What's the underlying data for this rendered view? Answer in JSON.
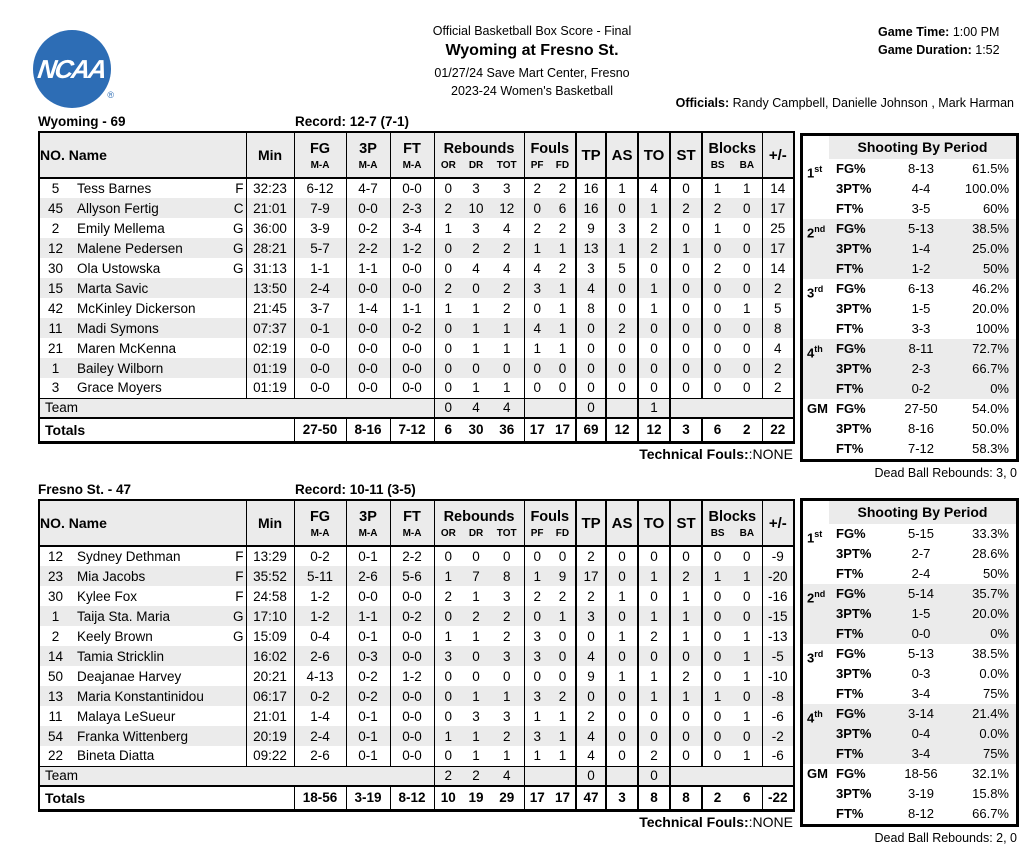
{
  "header": {
    "logo_text": "NCAA",
    "logo_reg": "®",
    "report_title": "Official Basketball Box Score - Final",
    "matchup": "Wyoming at Fresno St.",
    "venue_line": "01/27/24 Save Mart Center, Fresno",
    "league_line": "2023-24 Women's Basketball",
    "game_time_label": "Game Time:",
    "game_time": "1:00 PM",
    "game_duration_label": "Game Duration:",
    "game_duration": "1:52",
    "officials_label": "Officials:",
    "officials": "Randy Campbell, Danielle Johnson , Mark Harman",
    "logo_color": "#2d6db5",
    "stripe_color": "#ebebeb"
  },
  "table_headers": {
    "no_name": "NO. Name",
    "min": "Min",
    "fg": "FG",
    "p3": "3P",
    "ft": "FT",
    "ma": "M-A",
    "rebounds": "Rebounds",
    "or": "OR",
    "dr": "DR",
    "tot": "TOT",
    "fouls": "Fouls",
    "pf": "PF",
    "fd": "FD",
    "tp": "TP",
    "as": "AS",
    "to": "TO",
    "st": "ST",
    "blocks": "Blocks",
    "bs": "BS",
    "ba": "BA",
    "plusminus": "+/-",
    "team_label": "Team",
    "totals_label": "Totals",
    "technical_label": "Technical Fouls:",
    "technical_value": ":NONE",
    "shooting_title": "Shooting By Period"
  },
  "teams": [
    {
      "title": "Wyoming - 69",
      "record": "Record: 12-7 (7-1)",
      "players": [
        [
          "5",
          "Tess Barnes",
          "F",
          "32:23",
          "6-12",
          "4-7",
          "0-0",
          "0",
          "3",
          "3",
          "2",
          "2",
          "16",
          "1",
          "4",
          "0",
          "1",
          "1",
          "14"
        ],
        [
          "45",
          "Allyson Fertig",
          "C",
          "21:01",
          "7-9",
          "0-0",
          "2-3",
          "2",
          "10",
          "12",
          "0",
          "6",
          "16",
          "0",
          "1",
          "2",
          "2",
          "0",
          "17"
        ],
        [
          "2",
          "Emily Mellema",
          "G",
          "36:00",
          "3-9",
          "0-2",
          "3-4",
          "1",
          "3",
          "4",
          "2",
          "2",
          "9",
          "3",
          "2",
          "0",
          "1",
          "0",
          "25"
        ],
        [
          "12",
          "Malene Pedersen",
          "G",
          "28:21",
          "5-7",
          "2-2",
          "1-2",
          "0",
          "2",
          "2",
          "1",
          "1",
          "13",
          "1",
          "2",
          "1",
          "0",
          "0",
          "17"
        ],
        [
          "30",
          "Ola Ustowska",
          "G",
          "31:13",
          "1-1",
          "1-1",
          "0-0",
          "0",
          "4",
          "4",
          "4",
          "2",
          "3",
          "5",
          "0",
          "0",
          "2",
          "0",
          "14"
        ],
        [
          "15",
          "Marta Savic",
          "",
          "13:50",
          "2-4",
          "0-0",
          "0-0",
          "2",
          "0",
          "2",
          "3",
          "1",
          "4",
          "0",
          "1",
          "0",
          "0",
          "0",
          "2"
        ],
        [
          "42",
          "McKinley Dickerson",
          "",
          "21:45",
          "3-7",
          "1-4",
          "1-1",
          "1",
          "1",
          "2",
          "0",
          "1",
          "8",
          "0",
          "1",
          "0",
          "0",
          "1",
          "5"
        ],
        [
          "11",
          "Madi Symons",
          "",
          "07:37",
          "0-1",
          "0-0",
          "0-2",
          "0",
          "1",
          "1",
          "4",
          "1",
          "0",
          "2",
          "0",
          "0",
          "0",
          "0",
          "8"
        ],
        [
          "21",
          "Maren McKenna",
          "",
          "02:19",
          "0-0",
          "0-0",
          "0-0",
          "0",
          "1",
          "1",
          "1",
          "1",
          "0",
          "0",
          "0",
          "0",
          "0",
          "0",
          "4"
        ],
        [
          "1",
          "Bailey Wilborn",
          "",
          "01:19",
          "0-0",
          "0-0",
          "0-0",
          "0",
          "0",
          "0",
          "0",
          "0",
          "0",
          "0",
          "0",
          "0",
          "0",
          "0",
          "2"
        ],
        [
          "3",
          "Grace Moyers",
          "",
          "01:19",
          "0-0",
          "0-0",
          "0-0",
          "0",
          "1",
          "1",
          "0",
          "0",
          "0",
          "0",
          "0",
          "0",
          "0",
          "0",
          "2"
        ]
      ],
      "team_row": {
        "or": "0",
        "dr": "4",
        "tot": "4",
        "tp": "0",
        "to": "1"
      },
      "totals": {
        "fg": "27-50",
        "p3": "8-16",
        "ft": "7-12",
        "or": "6",
        "dr": "30",
        "tot": "36",
        "pf": "17",
        "fd": "17",
        "tp": "69",
        "as": "12",
        "to": "12",
        "st": "3",
        "bs": "6",
        "ba": "2",
        "pm": "22"
      },
      "shooting": {
        "periods": [
          {
            "label": "1",
            "sup": "st",
            "shaded": false,
            "rows": [
              [
                "FG%",
                "8-13",
                "61.5%"
              ],
              [
                "3PT%",
                "4-4",
                "100.0%"
              ],
              [
                "FT%",
                "3-5",
                "60%"
              ]
            ]
          },
          {
            "label": "2",
            "sup": "nd",
            "shaded": true,
            "rows": [
              [
                "FG%",
                "5-13",
                "38.5%"
              ],
              [
                "3PT%",
                "1-4",
                "25.0%"
              ],
              [
                "FT%",
                "1-2",
                "50%"
              ]
            ]
          },
          {
            "label": "3",
            "sup": "rd",
            "shaded": false,
            "rows": [
              [
                "FG%",
                "6-13",
                "46.2%"
              ],
              [
                "3PT%",
                "1-5",
                "20.0%"
              ],
              [
                "FT%",
                "3-3",
                "100%"
              ]
            ]
          },
          {
            "label": "4",
            "sup": "th",
            "shaded": true,
            "rows": [
              [
                "FG%",
                "8-11",
                "72.7%"
              ],
              [
                "3PT%",
                "2-3",
                "66.7%"
              ],
              [
                "FT%",
                "0-2",
                "0%"
              ]
            ]
          },
          {
            "label": "GM",
            "sup": "",
            "shaded": false,
            "rows": [
              [
                "FG%",
                "27-50",
                "54.0%"
              ],
              [
                "3PT%",
                "8-16",
                "50.0%"
              ],
              [
                "FT%",
                "7-12",
                "58.3%"
              ]
            ]
          }
        ]
      },
      "dead_ball": "Dead Ball Rebounds: 3, 0"
    },
    {
      "title": "Fresno St. - 47",
      "record": "Record: 10-11 (3-5)",
      "players": [
        [
          "12",
          "Sydney Dethman",
          "F",
          "13:29",
          "0-2",
          "0-1",
          "2-2",
          "0",
          "0",
          "0",
          "0",
          "0",
          "2",
          "0",
          "0",
          "0",
          "0",
          "0",
          "-9"
        ],
        [
          "23",
          "Mia Jacobs",
          "F",
          "35:52",
          "5-11",
          "2-6",
          "5-6",
          "1",
          "7",
          "8",
          "1",
          "9",
          "17",
          "0",
          "1",
          "2",
          "1",
          "1",
          "-20"
        ],
        [
          "30",
          "Kylee Fox",
          "F",
          "24:58",
          "1-2",
          "0-0",
          "0-0",
          "2",
          "1",
          "3",
          "2",
          "2",
          "2",
          "1",
          "0",
          "1",
          "0",
          "0",
          "-16"
        ],
        [
          "1",
          "Taija Sta. Maria",
          "G",
          "17:10",
          "1-2",
          "1-1",
          "0-2",
          "0",
          "2",
          "2",
          "0",
          "1",
          "3",
          "0",
          "1",
          "1",
          "0",
          "0",
          "-15"
        ],
        [
          "2",
          "Keely Brown",
          "G",
          "15:09",
          "0-4",
          "0-1",
          "0-0",
          "1",
          "1",
          "2",
          "3",
          "0",
          "0",
          "1",
          "2",
          "1",
          "0",
          "1",
          "-13"
        ],
        [
          "14",
          "Tamia Stricklin",
          "",
          "16:02",
          "2-6",
          "0-3",
          "0-0",
          "3",
          "0",
          "3",
          "3",
          "0",
          "4",
          "0",
          "0",
          "0",
          "0",
          "1",
          "-5"
        ],
        [
          "50",
          "Deajanae Harvey",
          "",
          "20:21",
          "4-13",
          "0-2",
          "1-2",
          "0",
          "0",
          "0",
          "0",
          "0",
          "9",
          "1",
          "1",
          "2",
          "0",
          "1",
          "-10"
        ],
        [
          "13",
          "Maria Konstantinidou",
          "",
          "06:17",
          "0-2",
          "0-2",
          "0-0",
          "0",
          "1",
          "1",
          "3",
          "2",
          "0",
          "0",
          "1",
          "1",
          "1",
          "0",
          "-8"
        ],
        [
          "11",
          "Malaya LeSueur",
          "",
          "21:01",
          "1-4",
          "0-1",
          "0-0",
          "0",
          "3",
          "3",
          "1",
          "1",
          "2",
          "0",
          "0",
          "0",
          "0",
          "1",
          "-6"
        ],
        [
          "54",
          "Franka Wittenberg",
          "",
          "20:19",
          "2-4",
          "0-1",
          "0-0",
          "1",
          "1",
          "2",
          "3",
          "1",
          "4",
          "0",
          "0",
          "0",
          "0",
          "0",
          "-2"
        ],
        [
          "22",
          "Bineta Diatta",
          "",
          "09:22",
          "2-6",
          "0-1",
          "0-0",
          "0",
          "1",
          "1",
          "1",
          "1",
          "4",
          "0",
          "2",
          "0",
          "0",
          "1",
          "-6"
        ]
      ],
      "team_row": {
        "or": "2",
        "dr": "2",
        "tot": "4",
        "tp": "0",
        "to": "0"
      },
      "totals": {
        "fg": "18-56",
        "p3": "3-19",
        "ft": "8-12",
        "or": "10",
        "dr": "19",
        "tot": "29",
        "pf": "17",
        "fd": "17",
        "tp": "47",
        "as": "3",
        "to": "8",
        "st": "8",
        "bs": "2",
        "ba": "6",
        "pm": "-22"
      },
      "shooting": {
        "periods": [
          {
            "label": "1",
            "sup": "st",
            "shaded": false,
            "rows": [
              [
                "FG%",
                "5-15",
                "33.3%"
              ],
              [
                "3PT%",
                "2-7",
                "28.6%"
              ],
              [
                "FT%",
                "2-4",
                "50%"
              ]
            ]
          },
          {
            "label": "2",
            "sup": "nd",
            "shaded": true,
            "rows": [
              [
                "FG%",
                "5-14",
                "35.7%"
              ],
              [
                "3PT%",
                "1-5",
                "20.0%"
              ],
              [
                "FT%",
                "0-0",
                "0%"
              ]
            ]
          },
          {
            "label": "3",
            "sup": "rd",
            "shaded": false,
            "rows": [
              [
                "FG%",
                "5-13",
                "38.5%"
              ],
              [
                "3PT%",
                "0-3",
                "0.0%"
              ],
              [
                "FT%",
                "3-4",
                "75%"
              ]
            ]
          },
          {
            "label": "4",
            "sup": "th",
            "shaded": true,
            "rows": [
              [
                "FG%",
                "3-14",
                "21.4%"
              ],
              [
                "3PT%",
                "0-4",
                "0.0%"
              ],
              [
                "FT%",
                "3-4",
                "75%"
              ]
            ]
          },
          {
            "label": "GM",
            "sup": "",
            "shaded": false,
            "rows": [
              [
                "FG%",
                "18-56",
                "32.1%"
              ],
              [
                "3PT%",
                "3-19",
                "15.8%"
              ],
              [
                "FT%",
                "8-12",
                "66.7%"
              ]
            ]
          }
        ]
      },
      "dead_ball": "Dead Ball Rebounds: 2, 0"
    }
  ]
}
